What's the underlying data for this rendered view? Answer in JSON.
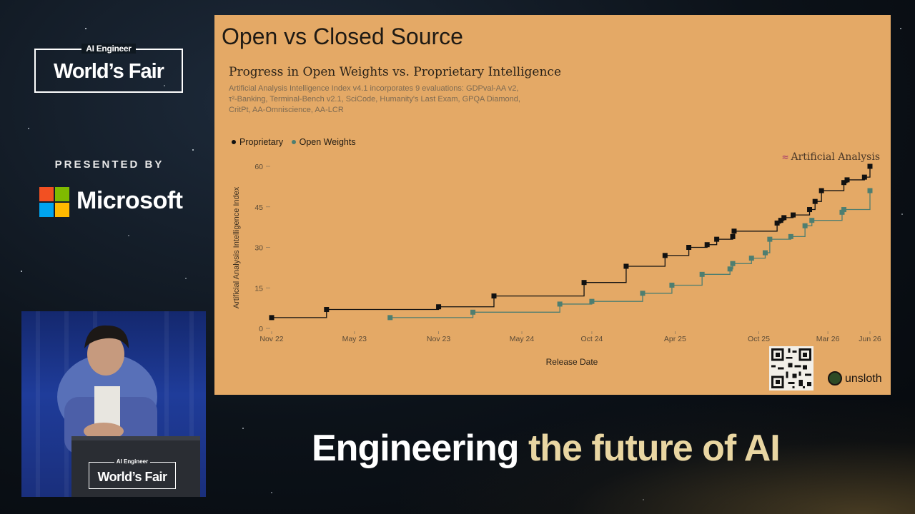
{
  "event": {
    "brand_small": "AI Engineer",
    "brand_big": "World’s Fair",
    "presented_by": "PRESENTED BY",
    "sponsor": "Microsoft",
    "podium_small": "AI Engineer",
    "podium_big": "World’s Fair",
    "tagline_white": "Engineering",
    "tagline_gold": "the future of AI"
  },
  "slide": {
    "title": "Open vs Closed Source",
    "source_brand": "Artificial Analysis",
    "footer_brand": "unsloth",
    "colors": {
      "background": "#e4a966",
      "proprietary": "#111111",
      "open_weights": "#4e7e70"
    }
  },
  "chart_data": {
    "type": "line",
    "title": "Progress in Open Weights vs. Proprietary Intelligence",
    "subtitle": "Artificial Analysis Intelligence Index v4.1 incorporates 9 evaluations: GDPval-AA v2, τ²-Banking, Terminal-Bench v2.1, SciCode, Humanity's Last Exam, GPQA Diamond, CritPt, AA-Omniscience, AA-LCR",
    "xlabel": "Release Date",
    "ylabel": "Artificial Analysis Intelligence Index",
    "ylim": [
      0,
      60
    ],
    "yticks": [
      0,
      15,
      30,
      45,
      60
    ],
    "xlim": [
      "2022-11-01",
      "2026-06-01"
    ],
    "xticks": [
      {
        "date": "2022-11-01",
        "label": "Nov 22"
      },
      {
        "date": "2023-05-01",
        "label": "May 23"
      },
      {
        "date": "2023-11-01",
        "label": "Nov 23"
      },
      {
        "date": "2024-05-01",
        "label": "May 24"
      },
      {
        "date": "2024-10-01",
        "label": "Oct 24"
      },
      {
        "date": "2025-04-01",
        "label": "Apr 25"
      },
      {
        "date": "2025-10-01",
        "label": "Oct 25"
      },
      {
        "date": "2026-03-01",
        "label": "Mar 26"
      },
      {
        "date": "2026-06-01",
        "label": "Jun 26"
      }
    ],
    "step": true,
    "grid": false,
    "legend_position": "top-left",
    "series": [
      {
        "name": "Proprietary",
        "color": "#111111",
        "points": [
          {
            "x": "2022-11-01",
            "y": 4
          },
          {
            "x": "2023-03-01",
            "y": 7
          },
          {
            "x": "2023-11-01",
            "y": 8
          },
          {
            "x": "2024-03-01",
            "y": 12
          },
          {
            "x": "2024-09-14",
            "y": 17
          },
          {
            "x": "2024-12-15",
            "y": 23
          },
          {
            "x": "2025-03-10",
            "y": 27
          },
          {
            "x": "2025-05-01",
            "y": 30
          },
          {
            "x": "2025-06-10",
            "y": 31
          },
          {
            "x": "2025-07-01",
            "y": 33
          },
          {
            "x": "2025-08-05",
            "y": 34
          },
          {
            "x": "2025-08-08",
            "y": 36
          },
          {
            "x": "2025-11-10",
            "y": 39
          },
          {
            "x": "2025-11-18",
            "y": 40
          },
          {
            "x": "2025-11-25",
            "y": 41
          },
          {
            "x": "2025-12-15",
            "y": 42
          },
          {
            "x": "2026-01-20",
            "y": 44
          },
          {
            "x": "2026-02-01",
            "y": 47
          },
          {
            "x": "2026-02-15",
            "y": 51
          },
          {
            "x": "2026-04-05",
            "y": 54
          },
          {
            "x": "2026-04-12",
            "y": 55
          },
          {
            "x": "2026-05-20",
            "y": 56
          },
          {
            "x": "2026-06-01",
            "y": 60
          }
        ]
      },
      {
        "name": "Open Weights",
        "color": "#4e7e70",
        "points": [
          {
            "x": "2023-07-18",
            "y": 4
          },
          {
            "x": "2024-01-15",
            "y": 6
          },
          {
            "x": "2024-07-23",
            "y": 9
          },
          {
            "x": "2024-10-01",
            "y": 10
          },
          {
            "x": "2025-01-20",
            "y": 13
          },
          {
            "x": "2025-03-25",
            "y": 16
          },
          {
            "x": "2025-05-30",
            "y": 20
          },
          {
            "x": "2025-07-30",
            "y": 22
          },
          {
            "x": "2025-08-05",
            "y": 24
          },
          {
            "x": "2025-09-15",
            "y": 26
          },
          {
            "x": "2025-10-15",
            "y": 28
          },
          {
            "x": "2025-10-25",
            "y": 33
          },
          {
            "x": "2025-12-10",
            "y": 34
          },
          {
            "x": "2026-01-10",
            "y": 38
          },
          {
            "x": "2026-01-25",
            "y": 40
          },
          {
            "x": "2026-04-01",
            "y": 43
          },
          {
            "x": "2026-04-05",
            "y": 44
          },
          {
            "x": "2026-06-01",
            "y": 51
          }
        ]
      }
    ]
  }
}
